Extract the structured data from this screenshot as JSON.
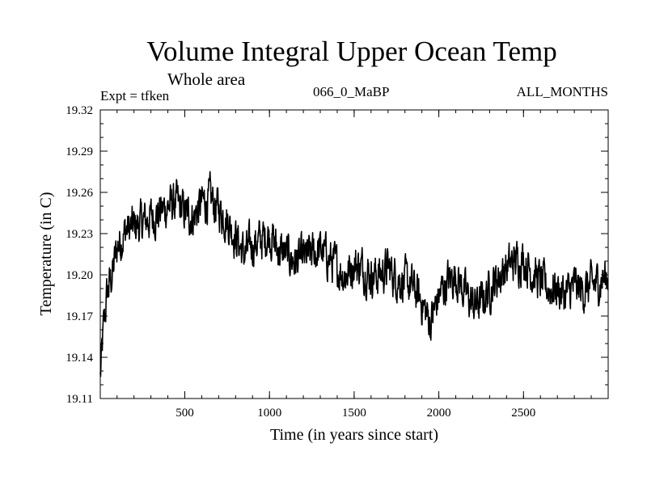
{
  "chart_data": {
    "type": "line",
    "title": "Volume Integral Upper Ocean Temp",
    "subtitle": "Whole area",
    "experiment": "Expt = tfken",
    "experiment_name": "066_0_MaBP",
    "season": "ALL_MONTHS",
    "xlabel": "Time (in years since start)",
    "ylabel": "Temperature (in C)",
    "xlim": [
      1,
      3000
    ],
    "ylim": [
      19.11,
      19.32
    ],
    "x_ticks": [
      500,
      1000,
      1500,
      2000,
      2500
    ],
    "y_ticks": [
      "19.11",
      "19.14",
      "19.17",
      "19.20",
      "19.23",
      "19.26",
      "19.29",
      "19.32"
    ],
    "grid": false,
    "series": [
      {
        "x": [
          1,
          20,
          40,
          60,
          80,
          100,
          150,
          200,
          250,
          300,
          350,
          400,
          450,
          500,
          550,
          600,
          650,
          700,
          750,
          800,
          850,
          900,
          950,
          1000,
          1050,
          1100,
          1150,
          1200,
          1250,
          1300,
          1350,
          1400,
          1450,
          1500,
          1550,
          1600,
          1650,
          1700,
          1750,
          1800,
          1850,
          1900,
          1950,
          2000,
          2050,
          2100,
          2150,
          2200,
          2250,
          2300,
          2350,
          2400,
          2450,
          2500,
          2550,
          2600,
          2650,
          2700,
          2750,
          2800,
          2850,
          2900,
          2950,
          3000
        ],
        "y": [
          19.125,
          19.16,
          19.185,
          19.195,
          19.205,
          19.22,
          19.232,
          19.235,
          19.238,
          19.242,
          19.245,
          19.25,
          19.252,
          19.245,
          19.242,
          19.252,
          19.255,
          19.248,
          19.24,
          19.228,
          19.215,
          19.222,
          19.225,
          19.23,
          19.218,
          19.215,
          19.21,
          19.212,
          19.215,
          19.218,
          19.212,
          19.205,
          19.2,
          19.208,
          19.205,
          19.2,
          19.2,
          19.205,
          19.198,
          19.195,
          19.19,
          19.18,
          19.165,
          19.185,
          19.195,
          19.2,
          19.188,
          19.178,
          19.18,
          19.19,
          19.198,
          19.205,
          19.21,
          19.212,
          19.202,
          19.195,
          19.19,
          19.19,
          19.185,
          19.192,
          19.188,
          19.192,
          19.195,
          19.2
        ],
        "noise_amplitude": 0.012
      }
    ]
  }
}
